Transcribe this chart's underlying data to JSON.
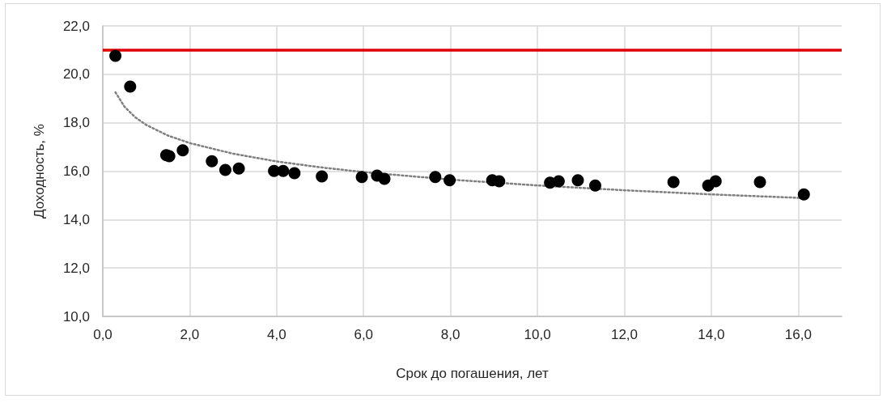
{
  "chart_data": {
    "type": "scatter",
    "xlabel": "Срок до погашения, лет",
    "ylabel": "Доходность, %",
    "xlim": [
      0,
      17
    ],
    "xticks": [
      {
        "value": 0,
        "label": "0,0"
      },
      {
        "value": 2,
        "label": "2,0"
      },
      {
        "value": 4,
        "label": "4,0"
      },
      {
        "value": 6,
        "label": "6,0"
      },
      {
        "value": 8,
        "label": "8,0"
      },
      {
        "value": 10,
        "label": "10,0"
      },
      {
        "value": 12,
        "label": "12,0"
      },
      {
        "value": 14,
        "label": "14,0"
      },
      {
        "value": 16,
        "label": "16,0"
      }
    ],
    "ylim": [
      10,
      22
    ],
    "yticks": [
      {
        "value": 10,
        "label": "10,0"
      },
      {
        "value": 12,
        "label": "12,0"
      },
      {
        "value": 14,
        "label": "14,0"
      },
      {
        "value": 16,
        "label": "16,0"
      },
      {
        "value": 18,
        "label": "18,0"
      },
      {
        "value": 20,
        "label": "20,0"
      },
      {
        "value": 22,
        "label": "22,0"
      }
    ],
    "grid": true,
    "marker": "circle",
    "series": [
      {
        "color": "#000000",
        "x": [
          0.29,
          0.63,
          1.46,
          1.53,
          1.84,
          2.51,
          2.82,
          3.13,
          3.94,
          4.15,
          4.41,
          5.04,
          5.96,
          6.31,
          6.48,
          7.65,
          7.98,
          8.96,
          9.12,
          10.29,
          10.49,
          10.93,
          11.33,
          13.13,
          13.93,
          14.1,
          15.12,
          16.13
        ],
        "values": [
          20.76,
          19.49,
          16.66,
          16.62,
          16.86,
          16.41,
          16.05,
          16.11,
          16.01,
          16.01,
          15.92,
          15.78,
          15.76,
          15.82,
          15.68,
          15.76,
          15.62,
          15.62,
          15.58,
          15.52,
          15.58,
          15.62,
          15.41,
          15.55,
          15.41,
          15.58,
          15.55,
          15.04
        ]
      },
      {
        "type": "line",
        "color": "#7f7f7f",
        "line_style": "dotted",
        "marker": "none",
        "x": [
          0.29,
          0.5,
          0.75,
          1,
          1.5,
          2,
          3,
          4,
          5,
          6,
          8,
          10,
          12,
          14,
          16.13
        ],
        "values": [
          19.26,
          18.66,
          18.22,
          17.91,
          17.47,
          17.16,
          16.72,
          16.4,
          16.16,
          15.96,
          15.65,
          15.41,
          15.21,
          15.04,
          14.89
        ]
      }
    ],
    "ref_lines": [
      {
        "axis": "y",
        "value": 21,
        "color": "#e00000"
      }
    ]
  }
}
